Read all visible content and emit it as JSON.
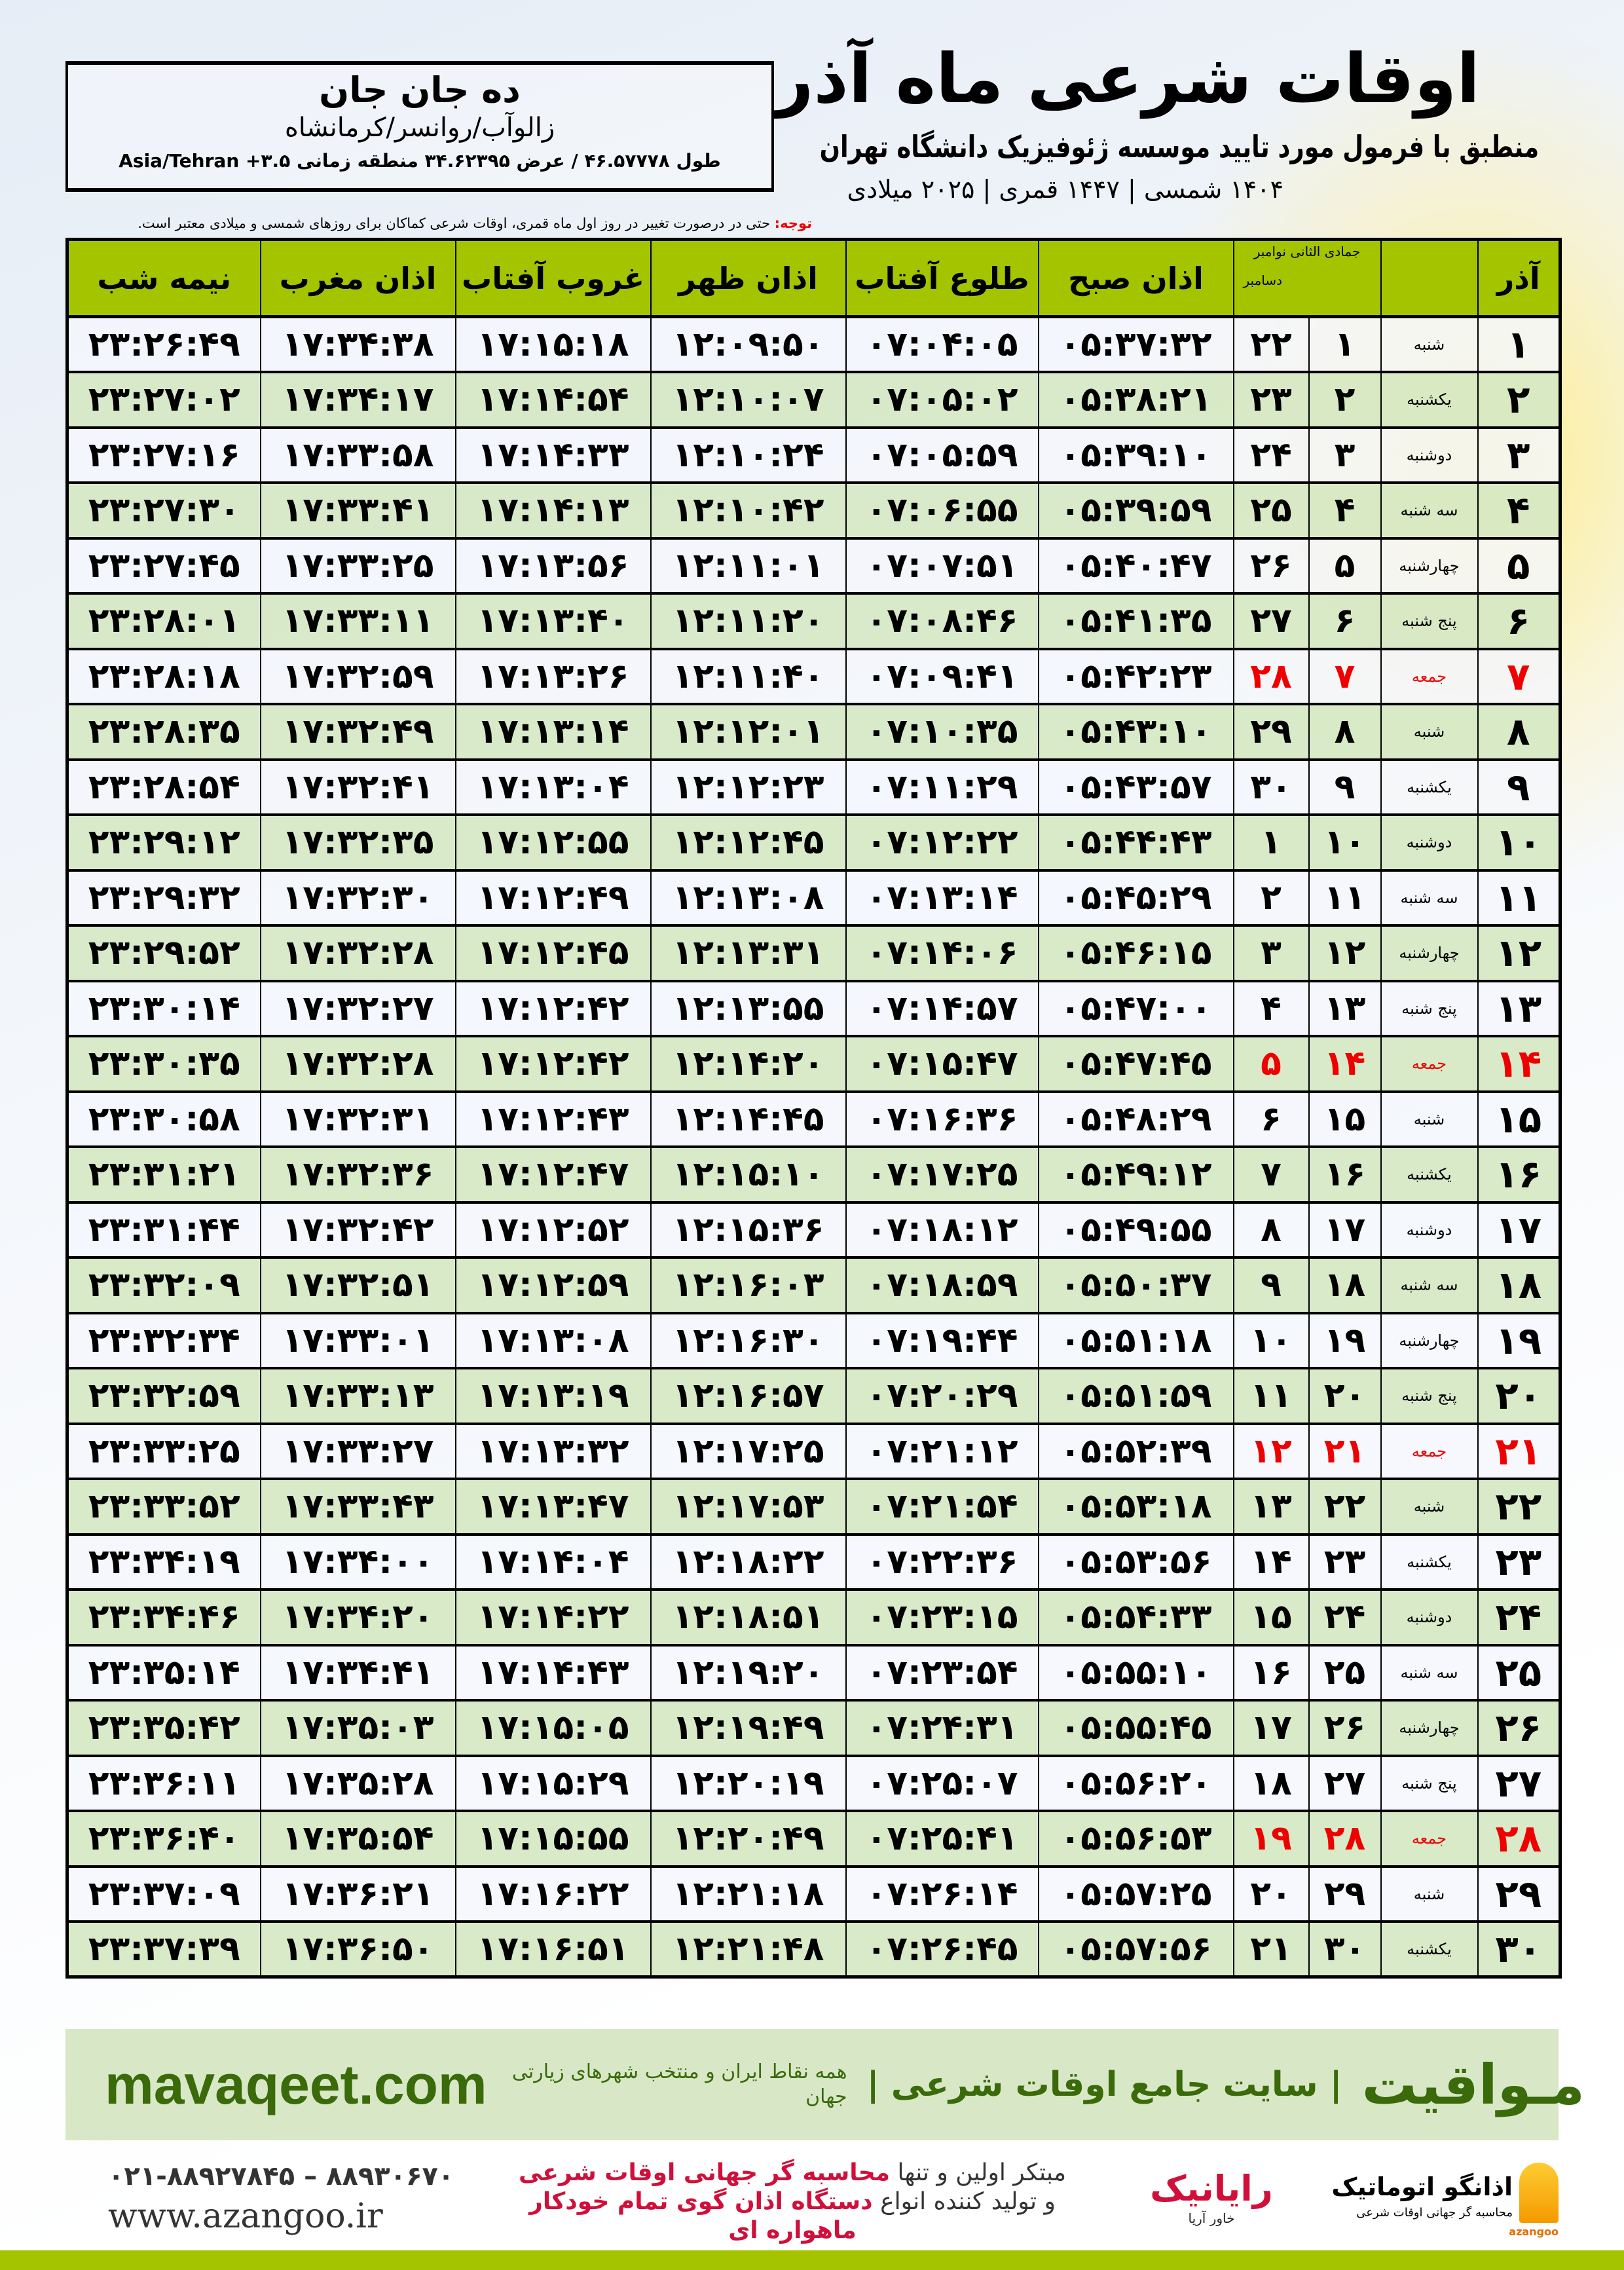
{
  "header": {
    "title": "اوقات شرعی ماه آذر",
    "subtitle": "منطبق با فرمول مورد تایید موسسه ژئوفیزیک دانشگاه تهران",
    "dates": "۱۴۰۴ شمسی | ۱۴۴۷ قمری | ۲۰۲۵ میلادی"
  },
  "location": {
    "name": "ده جان جان",
    "region": "زالوآب/روانسر/کرمانشاه",
    "coords": "طول ۴۶.۵۷۷۷۸ / عرض ۳۴.۶۲۳۹۵ منطقه زمانی ۳.۵+ Asia/Tehran"
  },
  "note": {
    "label": "توجه:",
    "text": " حتی در درصورت تغییر در روز اول ماه قمری، اوقات شرعی کماکان برای روزهای شمسی و میلادی معتبر است."
  },
  "colors": {
    "header_green": "#a4c400",
    "row_green": "#d6e8c4",
    "friday_red": "#e00000",
    "brand_green": "#3a6a0a"
  },
  "table": {
    "headers": {
      "azar": "آذر",
      "weekday": "",
      "jumada": "جمادی الثانی",
      "nov": "نوامبر",
      "dec": "دسامبر",
      "sobh": "اذان صبح",
      "tolu": "طلوع آفتاب",
      "zohr": "اذان ظهر",
      "ghorub": "غروب آفتاب",
      "maghreb": "اذان مغرب",
      "nimeshab": "نیمه شب"
    },
    "rows": [
      [
        "۱",
        "شنبه",
        "۱",
        "۲۲",
        "۰۵:۳۷:۳۲",
        "۰۷:۰۴:۰۵",
        "۱۲:۰۹:۵۰",
        "۱۷:۱۵:۱۸",
        "۱۷:۳۴:۳۸",
        "۲۳:۲۶:۴۹"
      ],
      [
        "۲",
        "یکشنبه",
        "۲",
        "۲۳",
        "۰۵:۳۸:۲۱",
        "۰۷:۰۵:۰۲",
        "۱۲:۱۰:۰۷",
        "۱۷:۱۴:۵۴",
        "۱۷:۳۴:۱۷",
        "۲۳:۲۷:۰۲"
      ],
      [
        "۳",
        "دوشنبه",
        "۳",
        "۲۴",
        "۰۵:۳۹:۱۰",
        "۰۷:۰۵:۵۹",
        "۱۲:۱۰:۲۴",
        "۱۷:۱۴:۳۳",
        "۱۷:۳۳:۵۸",
        "۲۳:۲۷:۱۶"
      ],
      [
        "۴",
        "سه شنبه",
        "۴",
        "۲۵",
        "۰۵:۳۹:۵۹",
        "۰۷:۰۶:۵۵",
        "۱۲:۱۰:۴۲",
        "۱۷:۱۴:۱۳",
        "۱۷:۳۳:۴۱",
        "۲۳:۲۷:۳۰"
      ],
      [
        "۵",
        "چهارشنبه",
        "۵",
        "۲۶",
        "۰۵:۴۰:۴۷",
        "۰۷:۰۷:۵۱",
        "۱۲:۱۱:۰۱",
        "۱۷:۱۳:۵۶",
        "۱۷:۳۳:۲۵",
        "۲۳:۲۷:۴۵"
      ],
      [
        "۶",
        "پنج شنبه",
        "۶",
        "۲۷",
        "۰۵:۴۱:۳۵",
        "۰۷:۰۸:۴۶",
        "۱۲:۱۱:۲۰",
        "۱۷:۱۳:۴۰",
        "۱۷:۳۳:۱۱",
        "۲۳:۲۸:۰۱"
      ],
      [
        "۷",
        "جمعه",
        "۷",
        "۲۸",
        "۰۵:۴۲:۲۳",
        "۰۷:۰۹:۴۱",
        "۱۲:۱۱:۴۰",
        "۱۷:۱۳:۲۶",
        "۱۷:۳۲:۵۹",
        "۲۳:۲۸:۱۸"
      ],
      [
        "۸",
        "شنبه",
        "۸",
        "۲۹",
        "۰۵:۴۳:۱۰",
        "۰۷:۱۰:۳۵",
        "۱۲:۱۲:۰۱",
        "۱۷:۱۳:۱۴",
        "۱۷:۳۲:۴۹",
        "۲۳:۲۸:۳۵"
      ],
      [
        "۹",
        "یکشنبه",
        "۹",
        "۳۰",
        "۰۵:۴۳:۵۷",
        "۰۷:۱۱:۲۹",
        "۱۲:۱۲:۲۳",
        "۱۷:۱۳:۰۴",
        "۱۷:۳۲:۴۱",
        "۲۳:۲۸:۵۴"
      ],
      [
        "۱۰",
        "دوشنبه",
        "۱۰",
        "۱",
        "۰۵:۴۴:۴۳",
        "۰۷:۱۲:۲۲",
        "۱۲:۱۲:۴۵",
        "۱۷:۱۲:۵۵",
        "۱۷:۳۲:۳۵",
        "۲۳:۲۹:۱۲"
      ],
      [
        "۱۱",
        "سه شنبه",
        "۱۱",
        "۲",
        "۰۵:۴۵:۲۹",
        "۰۷:۱۳:۱۴",
        "۱۲:۱۳:۰۸",
        "۱۷:۱۲:۴۹",
        "۱۷:۳۲:۳۰",
        "۲۳:۲۹:۳۲"
      ],
      [
        "۱۲",
        "چهارشنبه",
        "۱۲",
        "۳",
        "۰۵:۴۶:۱۵",
        "۰۷:۱۴:۰۶",
        "۱۲:۱۳:۳۱",
        "۱۷:۱۲:۴۵",
        "۱۷:۳۲:۲۸",
        "۲۳:۲۹:۵۲"
      ],
      [
        "۱۳",
        "پنج شنبه",
        "۱۳",
        "۴",
        "۰۵:۴۷:۰۰",
        "۰۷:۱۴:۵۷",
        "۱۲:۱۳:۵۵",
        "۱۷:۱۲:۴۲",
        "۱۷:۳۲:۲۷",
        "۲۳:۳۰:۱۴"
      ],
      [
        "۱۴",
        "جمعه",
        "۱۴",
        "۵",
        "۰۵:۴۷:۴۵",
        "۰۷:۱۵:۴۷",
        "۱۲:۱۴:۲۰",
        "۱۷:۱۲:۴۲",
        "۱۷:۳۲:۲۸",
        "۲۳:۳۰:۳۵"
      ],
      [
        "۱۵",
        "شنبه",
        "۱۵",
        "۶",
        "۰۵:۴۸:۲۹",
        "۰۷:۱۶:۳۶",
        "۱۲:۱۴:۴۵",
        "۱۷:۱۲:۴۳",
        "۱۷:۳۲:۳۱",
        "۲۳:۳۰:۵۸"
      ],
      [
        "۱۶",
        "یکشنبه",
        "۱۶",
        "۷",
        "۰۵:۴۹:۱۲",
        "۰۷:۱۷:۲۵",
        "۱۲:۱۵:۱۰",
        "۱۷:۱۲:۴۷",
        "۱۷:۳۲:۳۶",
        "۲۳:۳۱:۲۱"
      ],
      [
        "۱۷",
        "دوشنبه",
        "۱۷",
        "۸",
        "۰۵:۴۹:۵۵",
        "۰۷:۱۸:۱۲",
        "۱۲:۱۵:۳۶",
        "۱۷:۱۲:۵۲",
        "۱۷:۳۲:۴۲",
        "۲۳:۳۱:۴۴"
      ],
      [
        "۱۸",
        "سه شنبه",
        "۱۸",
        "۹",
        "۰۵:۵۰:۳۷",
        "۰۷:۱۸:۵۹",
        "۱۲:۱۶:۰۳",
        "۱۷:۱۲:۵۹",
        "۱۷:۳۲:۵۱",
        "۲۳:۳۲:۰۹"
      ],
      [
        "۱۹",
        "چهارشنبه",
        "۱۹",
        "۱۰",
        "۰۵:۵۱:۱۸",
        "۰۷:۱۹:۴۴",
        "۱۲:۱۶:۳۰",
        "۱۷:۱۳:۰۸",
        "۱۷:۳۳:۰۱",
        "۲۳:۳۲:۳۴"
      ],
      [
        "۲۰",
        "پنج شنبه",
        "۲۰",
        "۱۱",
        "۰۵:۵۱:۵۹",
        "۰۷:۲۰:۲۹",
        "۱۲:۱۶:۵۷",
        "۱۷:۱۳:۱۹",
        "۱۷:۳۳:۱۳",
        "۲۳:۳۲:۵۹"
      ],
      [
        "۲۱",
        "جمعه",
        "۲۱",
        "۱۲",
        "۰۵:۵۲:۳۹",
        "۰۷:۲۱:۱۲",
        "۱۲:۱۷:۲۵",
        "۱۷:۱۳:۳۲",
        "۱۷:۳۳:۲۷",
        "۲۳:۳۳:۲۵"
      ],
      [
        "۲۲",
        "شنبه",
        "۲۲",
        "۱۳",
        "۰۵:۵۳:۱۸",
        "۰۷:۲۱:۵۴",
        "۱۲:۱۷:۵۳",
        "۱۷:۱۳:۴۷",
        "۱۷:۳۳:۴۳",
        "۲۳:۳۳:۵۲"
      ],
      [
        "۲۳",
        "یکشنبه",
        "۲۳",
        "۱۴",
        "۰۵:۵۳:۵۶",
        "۰۷:۲۲:۳۶",
        "۱۲:۱۸:۲۲",
        "۱۷:۱۴:۰۴",
        "۱۷:۳۴:۰۰",
        "۲۳:۳۴:۱۹"
      ],
      [
        "۲۴",
        "دوشنبه",
        "۲۴",
        "۱۵",
        "۰۵:۵۴:۳۳",
        "۰۷:۲۳:۱۵",
        "۱۲:۱۸:۵۱",
        "۱۷:۱۴:۲۲",
        "۱۷:۳۴:۲۰",
        "۲۳:۳۴:۴۶"
      ],
      [
        "۲۵",
        "سه شنبه",
        "۲۵",
        "۱۶",
        "۰۵:۵۵:۱۰",
        "۰۷:۲۳:۵۴",
        "۱۲:۱۹:۲۰",
        "۱۷:۱۴:۴۳",
        "۱۷:۳۴:۴۱",
        "۲۳:۳۵:۱۴"
      ],
      [
        "۲۶",
        "چهارشنبه",
        "۲۶",
        "۱۷",
        "۰۵:۵۵:۴۵",
        "۰۷:۲۴:۳۱",
        "۱۲:۱۹:۴۹",
        "۱۷:۱۵:۰۵",
        "۱۷:۳۵:۰۳",
        "۲۳:۳۵:۴۲"
      ],
      [
        "۲۷",
        "پنج شنبه",
        "۲۷",
        "۱۸",
        "۰۵:۵۶:۲۰",
        "۰۷:۲۵:۰۷",
        "۱۲:۲۰:۱۹",
        "۱۷:۱۵:۲۹",
        "۱۷:۳۵:۲۸",
        "۲۳:۳۶:۱۱"
      ],
      [
        "۲۸",
        "جمعه",
        "۲۸",
        "۱۹",
        "۰۵:۵۶:۵۳",
        "۰۷:۲۵:۴۱",
        "۱۲:۲۰:۴۹",
        "۱۷:۱۵:۵۵",
        "۱۷:۳۵:۵۴",
        "۲۳:۳۶:۴۰"
      ],
      [
        "۲۹",
        "شنبه",
        "۲۹",
        "۲۰",
        "۰۵:۵۷:۲۵",
        "۰۷:۲۶:۱۴",
        "۱۲:۲۱:۱۸",
        "۱۷:۱۶:۲۲",
        "۱۷:۳۶:۲۱",
        "۲۳:۳۷:۰۹"
      ],
      [
        "۳۰",
        "یکشنبه",
        "۳۰",
        "۲۱",
        "۰۵:۵۷:۵۶",
        "۰۷:۲۶:۴۵",
        "۱۲:۲۱:۴۸",
        "۱۷:۱۶:۵۱",
        "۱۷:۳۶:۵۰",
        "۲۳:۳۷:۳۹"
      ]
    ]
  },
  "footer": {
    "brand": "مـواقیت",
    "headline": "| سایت جامع اوقات شرعی |",
    "tagline": "همه نقاط ایران و منتخب شهرهای زیارتی جهان",
    "site": "mavaqeet.com"
  },
  "bottom": {
    "phone": "۰۲۱-۸۸۹۲۷۸۴۵ – ۸۸۹۳۰۶۷۰",
    "web": "www.azangoo.ir",
    "promo1a": "مبتکر اولین و تنها ",
    "promo1b": "محاسبه گر جهانی اوقات شرعی",
    "promo2a": "و تولید کننده انواع ",
    "promo2b": "دستگاه اذان گوی تمام خودکار ماهواره ای",
    "logo2": "رایانیک",
    "logo2sub": "خاور آریا",
    "logo1": "اذانگو اتوماتیک",
    "logo1sub": "محاسبه گر جهانی اوقات شرعی",
    "logo1en": "azangoo"
  }
}
